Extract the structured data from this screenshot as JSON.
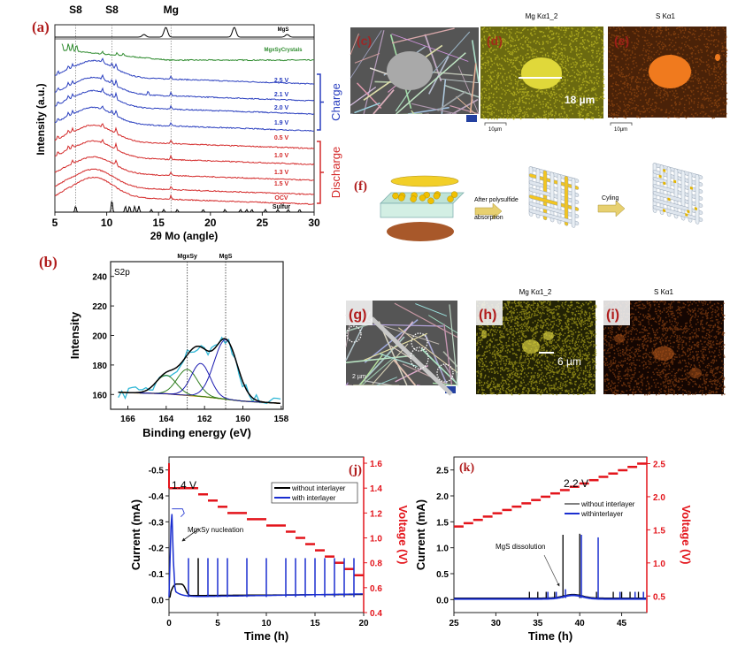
{
  "colors": {
    "panel_label": "#b01c1c",
    "charge": "#2a3fbf",
    "discharge": "#d42a2a",
    "crystals": "#2e8b2e",
    "xps_raw": "#2fb7d6",
    "xps_fit": "#000000",
    "xps_green": "#2e7d1e",
    "xps_blue": "#1a1ab0",
    "xps_bg": "#d4a017",
    "voltage": "#e3141b",
    "without": "#000000",
    "with": "#1a2ed0"
  },
  "panels": {
    "a": "(a)",
    "b": "(b)",
    "c": "(c)",
    "d": "(d)",
    "e": "(e)",
    "f": "(f)",
    "g": "(g)",
    "h": "(h)",
    "i": "(i)",
    "j": "(j)",
    "k": "(k)"
  },
  "images": {
    "d_title": "Mg Kα1_2",
    "e_title": "S Kα1",
    "d_scale": "18 µm",
    "d_bar": "10µm",
    "e_bar": "10µm",
    "h_title": "Mg Kα1_2",
    "i_title": "S Kα1",
    "h_scale": "6 µm",
    "g_scale": "2 µm",
    "f_step1": "After polysulfide",
    "f_step1b": "absorption",
    "f_step2": "Cyling"
  },
  "chart_data": [
    {
      "id": "a",
      "type": "line",
      "xlabel": "2θ Mo (angle)",
      "ylabel": "Intensity (a.u.)",
      "xlim": [
        5,
        30
      ],
      "xticks": [
        5,
        10,
        15,
        20,
        25,
        30
      ],
      "top_labels": [
        {
          "text": "S8",
          "x": 7.0
        },
        {
          "text": "S8",
          "x": 10.5
        },
        {
          "text": "Mg",
          "x": 16.2
        }
      ],
      "groups": [
        {
          "name": "Charge",
          "color": "#2a3fbf"
        },
        {
          "name": "Discharge",
          "color": "#d42a2a"
        }
      ],
      "series": [
        {
          "name": "MgS",
          "color": "#000000",
          "peaks": [
            13.6,
            15.7,
            22.3,
            27.4
          ]
        },
        {
          "name": "MgxSyCrystals",
          "color": "#2e8b2e",
          "peaks": [
            5.7,
            6.3,
            6.7,
            7.1,
            9.6,
            11.0,
            11.6
          ]
        },
        {
          "name": "2.5 V",
          "color": "#2a3fbf",
          "group": "Charge",
          "peaks": [
            5.3,
            6.3,
            6.7,
            9.6,
            10.5,
            10.9,
            16.2
          ]
        },
        {
          "name": "2.1 V",
          "color": "#2a3fbf",
          "group": "Charge",
          "peaks": [
            5.3,
            6.3,
            6.7,
            9.6,
            10.5,
            10.9,
            14.0,
            16.2
          ]
        },
        {
          "name": "2.0 V",
          "color": "#2a3fbf",
          "group": "Charge",
          "peaks": [
            5.3,
            6.3,
            6.7,
            9.6,
            10.5,
            10.9,
            16.2
          ]
        },
        {
          "name": "1.9 V",
          "color": "#2a3fbf",
          "group": "Charge",
          "peaks": [
            5.3,
            6.3,
            6.7,
            9.6,
            10.5,
            10.9,
            16.2
          ]
        },
        {
          "name": "0.5 V",
          "color": "#d42a2a",
          "group": "Discharge",
          "peaks": [
            5.3,
            6.3,
            6.7,
            9.6,
            10.9,
            16.2
          ]
        },
        {
          "name": "1.0 V",
          "color": "#d42a2a",
          "group": "Discharge",
          "peaks": [
            5.3,
            6.3,
            6.7,
            9.6,
            10.9,
            16.2
          ]
        },
        {
          "name": "1.3 V",
          "color": "#d42a2a",
          "group": "Discharge",
          "peaks": [
            6.7,
            10.9,
            16.2
          ]
        },
        {
          "name": "1.5 V",
          "color": "#d42a2a",
          "group": "Discharge",
          "peaks": [
            16.2
          ]
        },
        {
          "name": "OCV",
          "color": "#d42a2a",
          "group": "Discharge",
          "peaks": [
            16.2
          ]
        },
        {
          "name": "Sulfur",
          "color": "#000000",
          "peaks": [
            7.0,
            10.5,
            11.8,
            12.2,
            12.7,
            13.1,
            14.3,
            15.5,
            16.8,
            19.3,
            21.4,
            22.9,
            23.5,
            24.0,
            25.3,
            26.5,
            27.5,
            28.6
          ]
        }
      ]
    },
    {
      "id": "b",
      "type": "line",
      "xlabel": "Binding energy (eV)",
      "ylabel": "Intensity",
      "annotation": "S2p",
      "xlim": [
        166.5,
        158
      ],
      "ylim": [
        150,
        250
      ],
      "xticks": [
        166,
        164,
        162,
        160,
        158
      ],
      "yticks": [
        160,
        180,
        200,
        220,
        240
      ],
      "markers": [
        {
          "text": "MgxSy",
          "x": 162.9
        },
        {
          "text": "MgS",
          "x": 160.9
        }
      ],
      "components": [
        {
          "center": 164.0,
          "height": 173,
          "width": 0.75,
          "color": "#2e7d1e"
        },
        {
          "center": 162.9,
          "height": 177,
          "width": 0.75,
          "color": "#2e7d1e"
        },
        {
          "center": 162.2,
          "height": 181,
          "width": 0.7,
          "color": "#1a1ab0"
        },
        {
          "center": 160.9,
          "height": 197,
          "width": 0.85,
          "color": "#1a1ab0"
        }
      ],
      "background": [
        [
          166.5,
          161.5
        ],
        [
          164,
          160.5
        ],
        [
          162,
          158.5
        ],
        [
          160,
          155.5
        ],
        [
          158,
          154
        ]
      ]
    },
    {
      "id": "j",
      "type": "line",
      "xlabel": "Time (h)",
      "ylabel": "Current (mA)",
      "y2label": "Voltage (V)",
      "xlim": [
        0,
        20
      ],
      "ylim": [
        0.05,
        -0.55
      ],
      "y2lim": [
        0.4,
        1.65
      ],
      "xticks": [
        0,
        5,
        10,
        15,
        20
      ],
      "yticks": [
        -0.5,
        -0.4,
        -0.3,
        -0.2,
        -0.1,
        0.0
      ],
      "y2ticks": [
        0.4,
        0.6,
        0.8,
        1.0,
        1.2,
        1.4,
        1.6
      ],
      "annotations": [
        "1.4 V",
        "MgxSy nucleation"
      ],
      "legend": [
        "without interlayer",
        "with interlayer"
      ],
      "voltage_steps": [
        [
          0,
          3,
          1.4
        ],
        [
          3,
          4,
          1.35
        ],
        [
          4,
          5,
          1.3
        ],
        [
          5,
          6,
          1.25
        ],
        [
          6,
          8,
          1.2
        ],
        [
          8,
          10,
          1.15
        ],
        [
          10,
          12,
          1.1
        ],
        [
          12,
          13,
          1.05
        ],
        [
          13,
          14,
          1.0
        ],
        [
          14,
          15,
          0.95
        ],
        [
          15,
          16,
          0.9
        ],
        [
          16,
          17,
          0.85
        ],
        [
          17,
          18,
          0.8
        ],
        [
          18,
          19,
          0.75
        ],
        [
          19,
          20,
          0.7
        ]
      ],
      "spikes_with": [
        2,
        4,
        5,
        6,
        8,
        10,
        12,
        13,
        14,
        15,
        16,
        17,
        18,
        19
      ],
      "spikes_without": [
        3
      ],
      "spike_current": -0.16,
      "nucleation_peak": [
        0.3,
        -0.33
      ],
      "hump_without": [
        1.0,
        -0.06
      ]
    },
    {
      "id": "k",
      "type": "line",
      "xlabel": "Time (h)",
      "ylabel": "Current (mA)",
      "y2label": "Voltage (V)",
      "xlim": [
        25,
        48
      ],
      "ylim": [
        -0.25,
        2.75
      ],
      "y2lim": [
        0.25,
        2.6
      ],
      "xticks": [
        25,
        30,
        35,
        40,
        45
      ],
      "yticks": [
        0.0,
        0.5,
        1.0,
        1.5,
        2.0,
        2.5
      ],
      "y2ticks": [
        0.5,
        1.0,
        1.5,
        2.0,
        2.5
      ],
      "annotations": [
        "2.2 V",
        "MgS dissolution"
      ],
      "legend": [
        "without interlayer",
        "withinterlayer"
      ],
      "voltage_start": [
        25,
        1.55
      ],
      "voltage_end": [
        48,
        2.5
      ],
      "voltage_step": 0.05,
      "spikes_without": [
        [
          34,
          0.15
        ],
        [
          35,
          0.15
        ],
        [
          36,
          0.15
        ],
        [
          37,
          0.15
        ],
        [
          38,
          1.25
        ],
        [
          40,
          1.27
        ],
        [
          42,
          0.15
        ],
        [
          44,
          0.15
        ],
        [
          45,
          0.15
        ],
        [
          46,
          0.15
        ],
        [
          47,
          0.15
        ]
      ],
      "spikes_with": [
        [
          36.2,
          0.15
        ],
        [
          37.2,
          0.15
        ],
        [
          38.3,
          0.2
        ],
        [
          40.2,
          1.25
        ],
        [
          42.2,
          1.2
        ],
        [
          44.8,
          0.15
        ],
        [
          46.6,
          0.15
        ],
        [
          47.6,
          0.15
        ]
      ],
      "hump": [
        39.2,
        0.1
      ]
    }
  ]
}
